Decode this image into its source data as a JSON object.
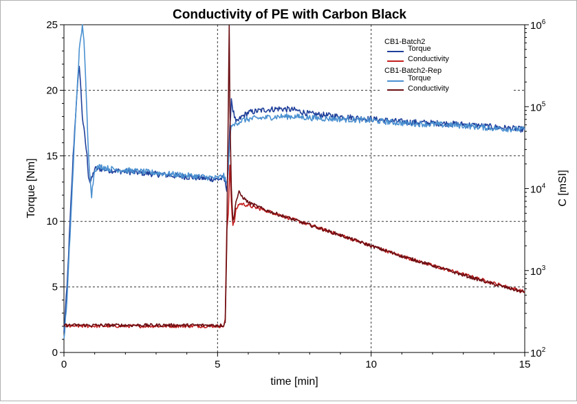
{
  "chart_data": {
    "type": "line",
    "title": "Conductivity of PE with Carbon Black",
    "xlabel": "time [min]",
    "ylabel": "Torque [Nm]",
    "y2label": "C [mSI]",
    "xlim": [
      0,
      15
    ],
    "ylim": [
      0,
      25
    ],
    "y2lim": [
      100,
      1000000
    ],
    "y2scale": "log",
    "grid": true,
    "legend_position": "top-right",
    "x_ticks": [
      "0",
      "5",
      "10",
      "15"
    ],
    "y_ticks": [
      "0",
      "5",
      "10",
      "15",
      "20",
      "25"
    ],
    "y2_ticks": [
      {
        "base": "10",
        "exp": "2"
      },
      {
        "base": "10",
        "exp": "3"
      },
      {
        "base": "10",
        "exp": "4"
      },
      {
        "base": "10",
        "exp": "5"
      },
      {
        "base": "10",
        "exp": "6"
      }
    ],
    "legend": [
      {
        "group": "CB1-Batch2",
        "entries": [
          {
            "name": "Torque",
            "color": "#1f3f9a"
          },
          {
            "name": "Conductivity",
            "color": "#c41e1e"
          }
        ]
      },
      {
        "group": "CB1-Batch2-Rep",
        "entries": [
          {
            "name": "Torque",
            "color": "#4a90d0"
          },
          {
            "name": "Conductivity",
            "color": "#6a0e12"
          }
        ]
      }
    ],
    "series": [
      {
        "group": "CB1-Batch2",
        "name": "Torque",
        "axis": "left",
        "color": "#1f3f9a",
        "x": [
          0,
          0.1,
          0.2,
          0.3,
          0.4,
          0.5,
          0.55,
          0.6,
          0.65,
          0.7,
          0.75,
          0.8,
          0.85,
          0.9,
          1.0,
          1.2,
          1.5,
          2.0,
          2.5,
          3.0,
          3.5,
          4.0,
          4.5,
          5.0,
          5.2,
          5.3,
          5.35,
          5.4,
          5.45,
          5.5,
          5.6,
          5.8,
          6.0,
          6.5,
          7.0,
          7.5,
          8.0,
          9.0,
          10.0,
          11.0,
          12.0,
          13.0,
          14.0,
          15.0
        ],
        "y": [
          1.5,
          5,
          10,
          15,
          19,
          22,
          20,
          18,
          17,
          16,
          15,
          13.5,
          13,
          13.2,
          14,
          14,
          13.9,
          13.8,
          13.7,
          13.6,
          13.5,
          13.4,
          13.3,
          13.2,
          13.3,
          12.5,
          14,
          17,
          19.4,
          18.5,
          17.5,
          18,
          18.3,
          18.5,
          18.6,
          18.5,
          18.2,
          18.0,
          17.8,
          17.6,
          17.5,
          17.4,
          17.2,
          17.0
        ]
      },
      {
        "group": "CB1-Batch2",
        "name": "Conductivity",
        "axis": "right",
        "color": "#c41e1e",
        "x": [
          0,
          1,
          2,
          3,
          4,
          5,
          5.2,
          5.25,
          5.3,
          5.35,
          5.4,
          5.45,
          5.5,
          5.55,
          5.6,
          5.7,
          5.8,
          6.0,
          6.5,
          7,
          8,
          9,
          10,
          11,
          12,
          13,
          14,
          15
        ],
        "y": [
          210,
          210,
          210,
          210,
          210,
          210,
          210,
          250,
          3000,
          5000,
          20000,
          7000,
          3500,
          4000,
          5500,
          6500,
          6500,
          6200,
          5500,
          4800,
          3600,
          2700,
          2000,
          1500,
          1150,
          900,
          700,
          550
        ]
      },
      {
        "group": "CB1-Batch2-Rep",
        "name": "Torque",
        "axis": "left",
        "color": "#4a90d0",
        "x": [
          0,
          0.1,
          0.2,
          0.3,
          0.4,
          0.5,
          0.6,
          0.65,
          0.7,
          0.75,
          0.8,
          0.85,
          0.9,
          1.0,
          1.2,
          1.5,
          2.0,
          2.5,
          3.0,
          3.5,
          4.0,
          4.5,
          5.0,
          5.2,
          5.3,
          5.35,
          5.4,
          5.45,
          5.5,
          5.6,
          5.8,
          6.0,
          6.5,
          7.0,
          7.5,
          8.0,
          9.0,
          10.0,
          11.0,
          12.0,
          13.0,
          14.0,
          15.0
        ],
        "y": [
          1.0,
          4,
          9,
          14,
          19,
          23,
          25,
          24,
          21,
          18,
          15,
          13.5,
          12,
          14,
          14.2,
          14,
          13.9,
          13.8,
          13.7,
          13.6,
          13.5,
          13.4,
          13.3,
          13.5,
          12.8,
          14,
          16,
          17.5,
          17.2,
          17.5,
          17.7,
          17.8,
          17.9,
          18.0,
          18.0,
          17.9,
          17.8,
          17.7,
          17.5,
          17.4,
          17.3,
          17.1,
          17.0
        ]
      },
      {
        "group": "CB1-Batch2-Rep",
        "name": "Conductivity",
        "axis": "right",
        "color": "#6a0e12",
        "x": [
          0,
          1,
          2,
          3,
          4,
          5,
          5.2,
          5.25,
          5.3,
          5.35,
          5.38,
          5.4,
          5.45,
          5.5,
          5.55,
          5.6,
          5.7,
          5.8,
          6.0,
          6.5,
          7,
          8,
          9,
          10,
          11,
          12,
          13,
          14,
          15
        ],
        "y": [
          215,
          215,
          215,
          215,
          215,
          215,
          215,
          240,
          2000,
          100000,
          1000000,
          100000,
          10000,
          4000,
          5000,
          7000,
          9000,
          8000,
          6800,
          5600,
          4800,
          3600,
          2700,
          2000,
          1500,
          1150,
          880,
          680,
          540
        ]
      }
    ]
  }
}
